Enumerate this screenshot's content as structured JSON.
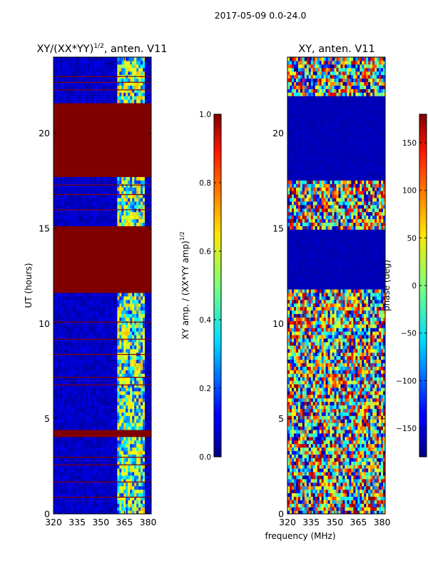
{
  "figure": {
    "suptitle": "2017-05-09 0.0-24.0",
    "xlabel": "frequency (MHz)"
  },
  "chart_data": [
    {
      "type": "heatmap",
      "title": "XY/(XX*YY)",
      "title_exponent": "1/2",
      "title_suffix": ", anten. V11",
      "xlabel": "",
      "ylabel": "UT (hours)",
      "xlim": [
        320,
        382
      ],
      "ylim": [
        0,
        24
      ],
      "xticks": [
        320,
        335,
        350,
        365,
        380
      ],
      "yticks": [
        0,
        5,
        10,
        15,
        20
      ],
      "colormap": "jet",
      "colorbar": {
        "label": "XY amp. / (XX*YY amp)",
        "label_exponent": "1/2",
        "range": [
          0.0,
          1.0
        ],
        "ticks": [
          "0.0",
          "0.2",
          "0.4",
          "0.6",
          "0.8",
          "1.0"
        ],
        "tick_values": [
          0.0,
          0.2,
          0.4,
          0.6,
          0.8,
          1.0
        ]
      },
      "saturated_time_bands_hours": [
        [
          4.1,
          4.4
        ],
        [
          11.6,
          15.2
        ],
        [
          17.8,
          21.6
        ]
      ],
      "active_frequency_band_mhz": [
        360,
        378
      ]
    },
    {
      "type": "heatmap",
      "title": "XY, anten. V11",
      "xlabel": "frequency (MHz)",
      "ylabel": "",
      "xlim": [
        320,
        382
      ],
      "ylim": [
        0,
        24
      ],
      "xticks": [
        320,
        335,
        350,
        365,
        380
      ],
      "yticks": [
        0,
        5,
        10,
        15,
        20
      ],
      "colormap": "jet",
      "colorbar": {
        "label": "phase (deg)",
        "range": [
          -180,
          180
        ],
        "ticks": [
          "−150",
          "−100",
          "−50",
          "0",
          "50",
          "100",
          "150"
        ],
        "tick_values": [
          -150,
          -100,
          -50,
          0,
          50,
          100,
          150
        ]
      },
      "flat_phase_time_bands_hours": [
        [
          11.9,
          14.9
        ],
        [
          17.5,
          21.9
        ]
      ]
    }
  ]
}
